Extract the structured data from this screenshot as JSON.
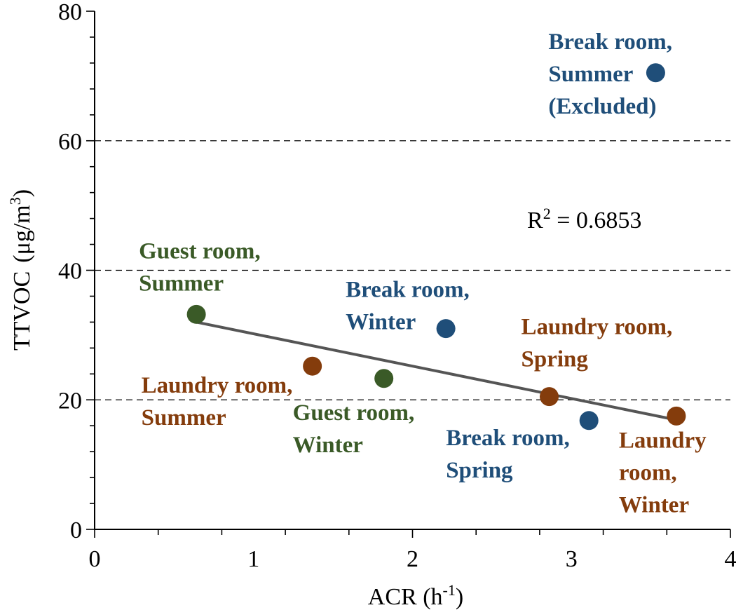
{
  "chart_data": {
    "type": "scatter",
    "title": "",
    "xlabel": "ACR (h",
    "xlabel_sup": "-1",
    "xlabel_end": ")",
    "ylabel": "TTVOC",
    "ylabel_unit": "(μg/m",
    "ylabel_sup": "3",
    "ylabel_end": ")",
    "xlim": [
      0,
      4
    ],
    "ylim": [
      0,
      80
    ],
    "x_ticks": [
      "0",
      "1",
      "2",
      "3",
      "4"
    ],
    "y_ticks": [
      "0",
      "20",
      "40",
      "60",
      "80"
    ],
    "grid": "horizontal dashed at 20, 40, 60",
    "colors": {
      "guest": "#3a5a27",
      "break": "#1f4e79",
      "laundry": "#843c0c",
      "trendline": "#555555"
    },
    "points": [
      {
        "x": 0.64,
        "y": 33.2,
        "group": "guest",
        "label": [
          "Guest room,",
          "Summer"
        ]
      },
      {
        "x": 1.82,
        "y": 23.3,
        "group": "guest",
        "label": [
          "Guest room,",
          "Winter"
        ]
      },
      {
        "x": 1.37,
        "y": 25.2,
        "group": "laundry",
        "label": [
          "Laundry room,",
          "Summer"
        ]
      },
      {
        "x": 2.86,
        "y": 20.5,
        "group": "laundry",
        "label": [
          "Laundry room,",
          "Spring"
        ]
      },
      {
        "x": 3.66,
        "y": 17.5,
        "group": "laundry",
        "label": [
          "Laundry",
          "room,",
          "Winter"
        ]
      },
      {
        "x": 2.21,
        "y": 31.0,
        "group": "break",
        "label": [
          "Break room,",
          "Winter"
        ]
      },
      {
        "x": 3.11,
        "y": 16.8,
        "group": "break",
        "label": [
          "Break room,",
          "Spring"
        ]
      },
      {
        "x": 3.53,
        "y": 70.5,
        "group": "break",
        "label": [
          "Break room,",
          "Summer",
          "(Excluded)"
        ]
      }
    ],
    "trendline": {
      "x": [
        0.64,
        3.66
      ],
      "y": [
        32.0,
        16.9
      ]
    },
    "annotation": {
      "prefix": "R",
      "sup": "2",
      "text": " = 0.6853"
    }
  }
}
